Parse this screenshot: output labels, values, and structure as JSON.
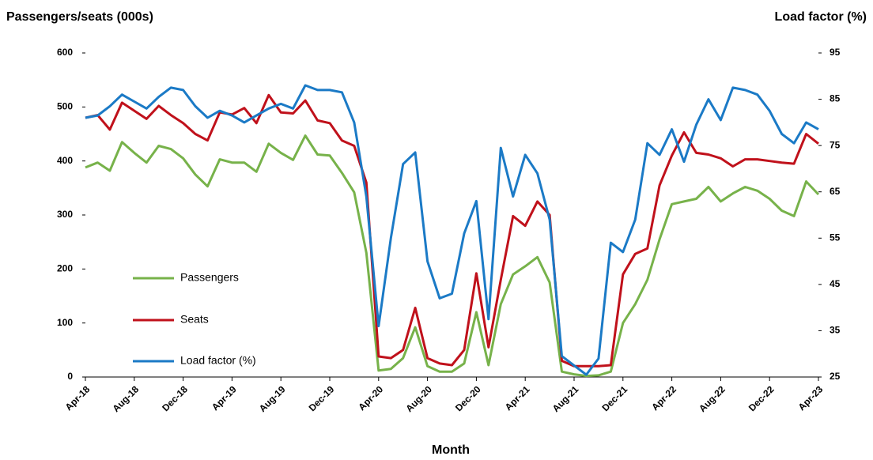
{
  "chart_data": {
    "type": "line",
    "y_label": "Passengers/seats (000s)",
    "y2_label": "Load factor (%)",
    "x_label": "Month",
    "categories": [
      "Apr-18",
      null,
      null,
      null,
      "Aug-18",
      null,
      null,
      null,
      "Dec-18",
      null,
      null,
      null,
      "Apr-19",
      null,
      null,
      null,
      "Aug-19",
      null,
      null,
      null,
      "Dec-19",
      null,
      null,
      null,
      "Apr-20",
      null,
      null,
      null,
      "Aug-20",
      null,
      null,
      null,
      "Dec-20",
      null,
      null,
      null,
      "Apr-21",
      null,
      null,
      null,
      "Aug-21",
      null,
      null,
      null,
      "Dec-21",
      null,
      null,
      null,
      "Apr-22",
      null,
      null,
      null,
      "Aug-22",
      null,
      null,
      null,
      "Dec-22",
      null,
      null,
      null,
      "Apr-23"
    ],
    "ylim": [
      0,
      600
    ],
    "yticks": [
      0,
      100,
      200,
      300,
      400,
      500,
      600
    ],
    "y2lim": [
      25,
      95
    ],
    "y2ticks": [
      25,
      35,
      45,
      55,
      65,
      75,
      85,
      95
    ],
    "grid": false,
    "legend": "left",
    "series": [
      {
        "name": "Passengers",
        "color": "#77b24a",
        "values": [
          388,
          397,
          382,
          435,
          415,
          397,
          428,
          422,
          405,
          375,
          353,
          403,
          397,
          397,
          380,
          432,
          415,
          402,
          447,
          412,
          410,
          378,
          342,
          230,
          12,
          15,
          35,
          92,
          20,
          10,
          10,
          25,
          120,
          22,
          135,
          190,
          205,
          222,
          175,
          10,
          5,
          2,
          3,
          10,
          100,
          135,
          180,
          255,
          320,
          325,
          330,
          352,
          325,
          340,
          352,
          345,
          330,
          308,
          298,
          362,
          338
        ]
      },
      {
        "name": "Seats",
        "color": "#c0111b",
        "values": [
          480,
          485,
          458,
          508,
          493,
          478,
          502,
          485,
          470,
          450,
          438,
          490,
          486,
          498,
          470,
          522,
          490,
          488,
          512,
          475,
          470,
          438,
          428,
          360,
          38,
          35,
          50,
          128,
          35,
          25,
          22,
          50,
          192,
          55,
          180,
          298,
          280,
          325,
          300,
          30,
          20,
          20,
          20,
          22,
          190,
          228,
          238,
          355,
          410,
          453,
          415,
          412,
          405,
          390,
          403,
          403,
          400,
          397,
          395,
          450,
          432
        ]
      },
      {
        "name": "Load factor (%)",
        "color": "#1b7ac6",
        "axis": "y2",
        "values": [
          81,
          81.5,
          83.5,
          86,
          84.5,
          83,
          85.5,
          87.5,
          87,
          83.5,
          81,
          82.5,
          81.5,
          80,
          81.5,
          83,
          84,
          83,
          88,
          87,
          87,
          86.5,
          80,
          64,
          36,
          55,
          71,
          73.5,
          50,
          42,
          43,
          56,
          63,
          37.5,
          74.5,
          64,
          73,
          69,
          59,
          29.5,
          27.5,
          25.5,
          29,
          54,
          52,
          59,
          75.5,
          73,
          78.5,
          71.5,
          79.5,
          85,
          80.5,
          87.5,
          87,
          86,
          82.5,
          77.5,
          75.5,
          80,
          78.5
        ]
      }
    ]
  }
}
